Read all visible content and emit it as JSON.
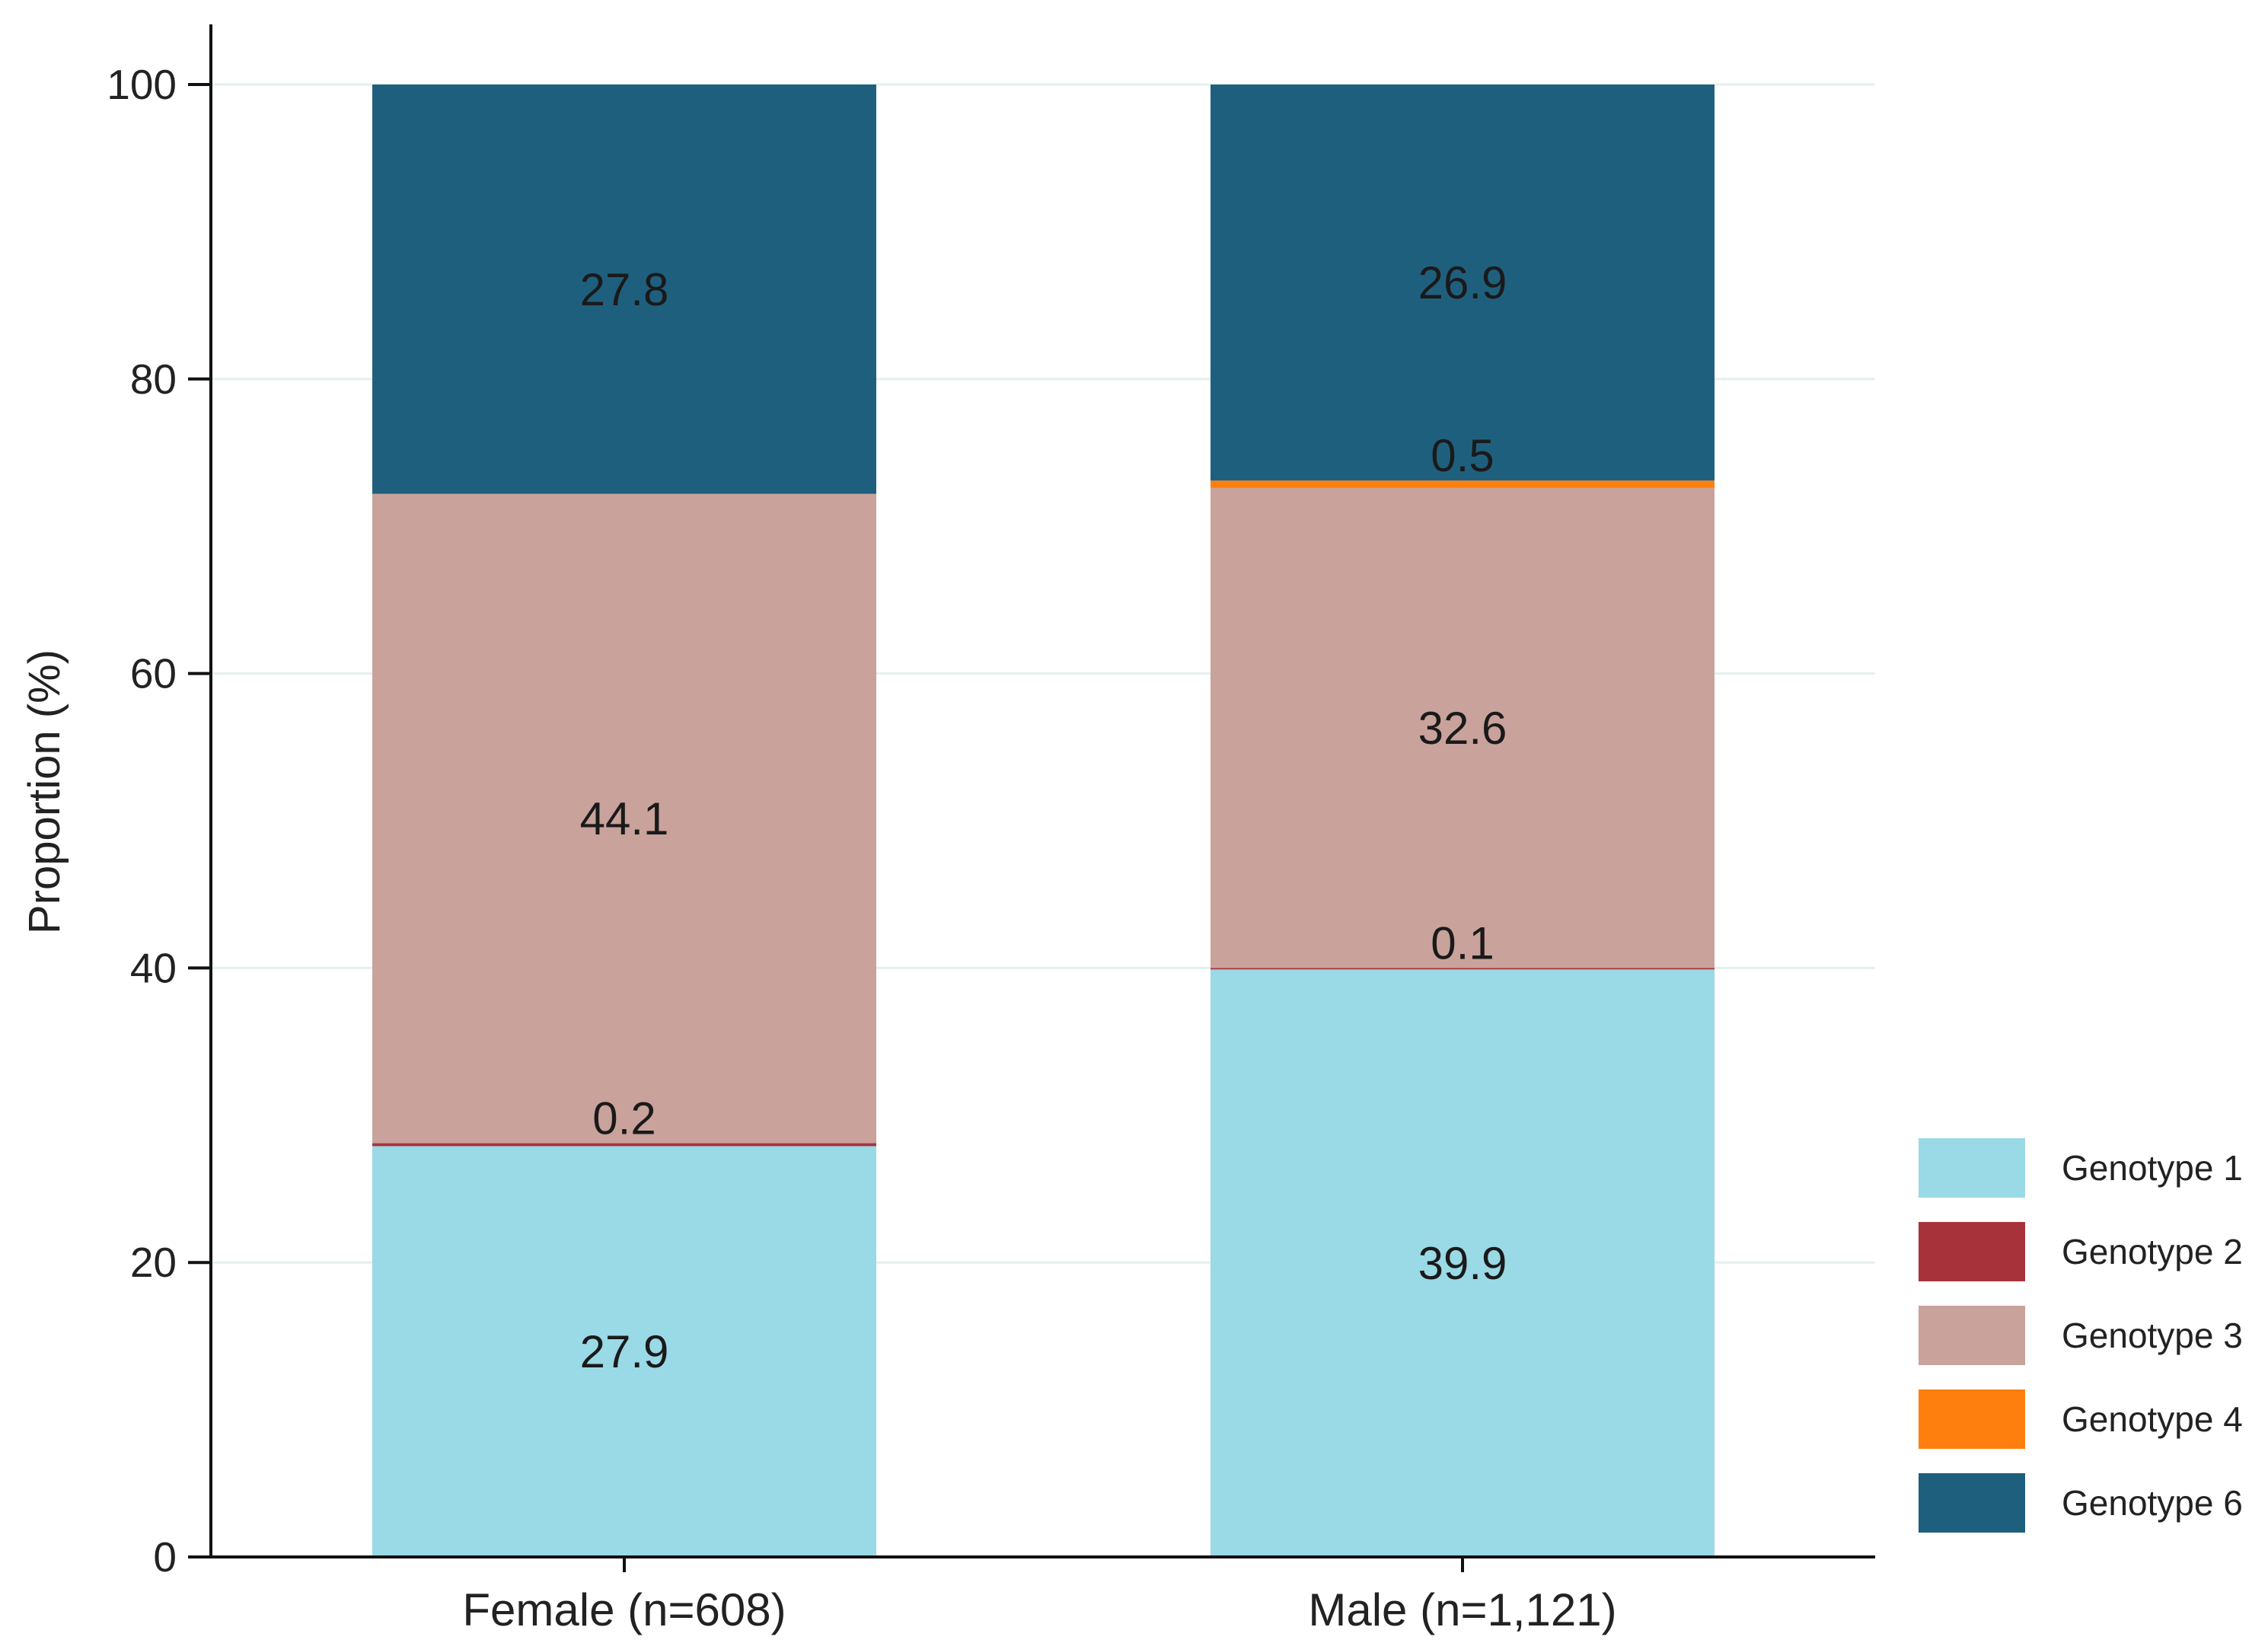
{
  "chart_data": {
    "type": "bar",
    "stacked": true,
    "title": "",
    "xlabel": "",
    "ylabel": "Proportion (%)",
    "ylim": [
      0,
      100
    ],
    "yticks": [
      0,
      20,
      40,
      60,
      80,
      100
    ],
    "yticklabels": [
      "0",
      "20",
      "40",
      "60",
      "80",
      "100"
    ],
    "grid": true,
    "legend_position": "bottom-right",
    "categories": [
      "Female (n=608)",
      "Male (n=1,121)"
    ],
    "series": [
      {
        "name": "Genotype 1",
        "color": "#9ad9e6",
        "values": [
          27.9,
          39.9
        ],
        "labels": [
          "27.9",
          "39.9"
        ]
      },
      {
        "name": "Genotype 2",
        "color": "#a8323a",
        "values": [
          0.2,
          0.1
        ],
        "labels": [
          "0.2",
          "0.1"
        ]
      },
      {
        "name": "Genotype 3",
        "color": "#c9a29b",
        "values": [
          44.1,
          32.6
        ],
        "labels": [
          "44.1",
          "32.6"
        ]
      },
      {
        "name": "Genotype 4",
        "color": "#ff7f0e",
        "values": [
          0,
          0.5
        ],
        "labels": [
          "",
          "0.5"
        ]
      },
      {
        "name": "Genotype 6",
        "color": "#1f5f7e",
        "values": [
          27.8,
          26.9
        ],
        "labels": [
          "27.8",
          "26.9"
        ]
      }
    ]
  }
}
